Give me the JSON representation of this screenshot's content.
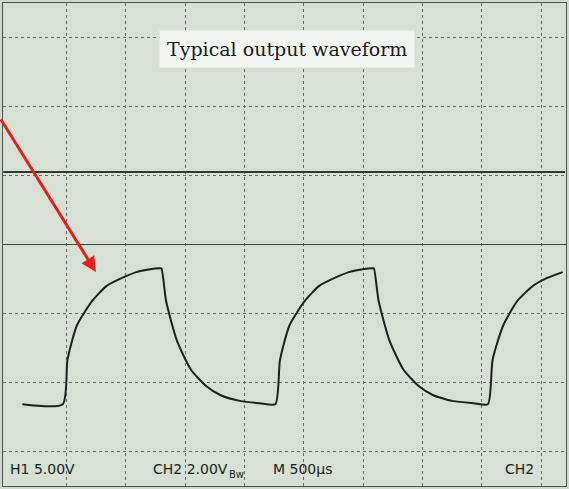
{
  "chart_data": {
    "type": "line",
    "title": "Typical output waveform",
    "x": [
      130,
      470,
      510,
      590,
      720,
      840,
      970,
      1090,
      1220,
      1280,
      1300,
      1340,
      1430,
      1550,
      1680,
      1800,
      1970,
      2130,
      2260,
      2300,
      2380,
      2510,
      2630,
      2760,
      2880,
      3010,
      3080,
      3090,
      3130,
      3220,
      3340,
      3470,
      3590,
      3760,
      3930,
      4050,
      4090,
      4180,
      4300,
      4430,
      4550,
      4680
    ],
    "series": [
      {
        "color": "#1c211d",
        "line_style": "solid",
        "values": [
          -4.63,
          -4.63,
          -3.34,
          -2.34,
          -1.63,
          -1.2,
          -0.97,
          -0.8,
          -0.71,
          -0.69,
          -0.69,
          -1.63,
          -2.77,
          -3.63,
          -4.11,
          -4.37,
          -4.54,
          -4.6,
          -4.63,
          -3.34,
          -2.34,
          -1.63,
          -1.2,
          -0.97,
          -0.8,
          -0.71,
          -0.69,
          -0.69,
          -1.63,
          -2.77,
          -3.63,
          -4.11,
          -4.37,
          -4.54,
          -4.6,
          -4.63,
          -3.34,
          -2.34,
          -1.63,
          -1.2,
          -0.97,
          -0.8
        ]
      },
      {
        "color": "#2f3a33",
        "line_style": "solid",
        "x": [
          -30,
          4700
        ],
        "values": [
          2.1,
          2.1
        ]
      }
    ],
    "xlim": [
      -33,
      4708
    ],
    "xticks": [
      500,
      1000,
      1500,
      2000,
      2500,
      3000,
      3500,
      4000,
      4500
    ],
    "ylim": [
      -7,
      7
    ],
    "yticks": [
      -6,
      -4,
      -2,
      0,
      2,
      4,
      6
    ],
    "grid": true,
    "tick_labels": false,
    "annotations": [
      "H1 5.00V",
      "CH2 2.00V",
      "Bw",
      "M 500µs",
      "CH2"
    ]
  }
}
